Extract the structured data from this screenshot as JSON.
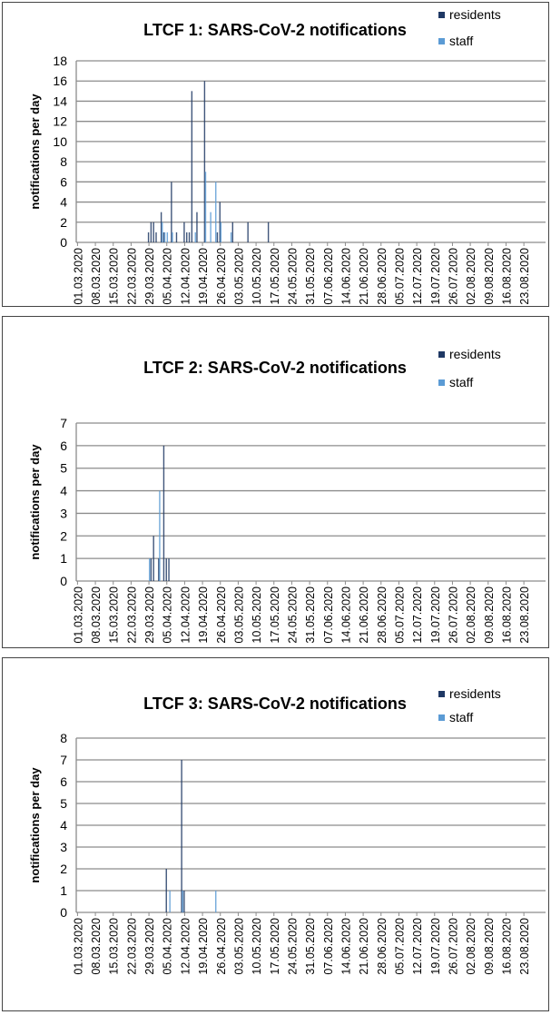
{
  "chart_data": [
    {
      "type": "bar",
      "title": "LTCF 1: SARS-CoV-2 notifications",
      "xlabel": "",
      "ylabel": "notifications per day",
      "ylim": [
        0,
        18
      ],
      "yticks": [
        0,
        2,
        4,
        6,
        8,
        10,
        12,
        14,
        16,
        18
      ],
      "grid": true,
      "legend_position": "top-right",
      "x_start": "01.03.2020",
      "x_end": "31.08.2020",
      "xtick_labels": [
        "01.03.2020",
        "08.03.2020",
        "15.03.2020",
        "22.03.2020",
        "29.03.2020",
        "05.04.2020",
        "12.04.2020",
        "19.04.2020",
        "26.04.2020",
        "03.05.2020",
        "10.05.2020",
        "17.05.2020",
        "24.05.2020",
        "31.05.2020",
        "07.06.2020",
        "14.06.2020",
        "21.06.2020",
        "28.06.2020",
        "05.07.2020",
        "12.07.2020",
        "19.07.2020",
        "26.07.2020",
        "02.08.2020",
        "09.08.2020",
        "16.08.2020",
        "23.08.2020"
      ],
      "series": [
        {
          "name": "residents",
          "color": "#1f3864",
          "points": [
            {
              "date": "29.03.2020",
              "value": 1
            },
            {
              "date": "30.03.2020",
              "value": 2
            },
            {
              "date": "31.03.2020",
              "value": 2
            },
            {
              "date": "01.04.2020",
              "value": 1
            },
            {
              "date": "03.04.2020",
              "value": 3
            },
            {
              "date": "04.04.2020",
              "value": 1
            },
            {
              "date": "07.04.2020",
              "value": 6
            },
            {
              "date": "09.04.2020",
              "value": 1
            },
            {
              "date": "12.04.2020",
              "value": 2
            },
            {
              "date": "13.04.2020",
              "value": 1
            },
            {
              "date": "14.04.2020",
              "value": 1
            },
            {
              "date": "15.04.2020",
              "value": 15
            },
            {
              "date": "17.04.2020",
              "value": 3
            },
            {
              "date": "20.04.2020",
              "value": 16
            },
            {
              "date": "25.04.2020",
              "value": 1
            },
            {
              "date": "26.04.2020",
              "value": 4
            },
            {
              "date": "01.05.2020",
              "value": 2
            },
            {
              "date": "07.05.2020",
              "value": 2
            },
            {
              "date": "15.05.2020",
              "value": 2
            }
          ]
        },
        {
          "name": "staff",
          "color": "#5b9bd5",
          "points": [
            {
              "date": "03.04.2020",
              "value": 2
            },
            {
              "date": "04.04.2020",
              "value": 1
            },
            {
              "date": "05.04.2020",
              "value": 1
            },
            {
              "date": "07.04.2020",
              "value": 1
            },
            {
              "date": "16.04.2020",
              "value": 1
            },
            {
              "date": "20.04.2020",
              "value": 7
            },
            {
              "date": "22.04.2020",
              "value": 3
            },
            {
              "date": "24.04.2020",
              "value": 6
            },
            {
              "date": "26.04.2020",
              "value": 2
            },
            {
              "date": "30.04.2020",
              "value": 1
            }
          ]
        }
      ]
    },
    {
      "type": "bar",
      "title": "LTCF 2: SARS-CoV-2 notifications",
      "xlabel": "",
      "ylabel": "notifications per day",
      "ylim": [
        0,
        7
      ],
      "yticks": [
        0,
        1,
        2,
        3,
        4,
        5,
        6,
        7
      ],
      "grid": true,
      "legend_position": "top-right",
      "x_start": "01.03.2020",
      "x_end": "31.08.2020",
      "xtick_labels": [
        "01.03.2020",
        "08.03.2020",
        "15.03.2020",
        "22.03.2020",
        "29.03.2020",
        "05.04.2020",
        "12.04.2020",
        "19.04.2020",
        "26.04.2020",
        "03.05.2020",
        "10.05.2020",
        "17.05.2020",
        "24.05.2020",
        "31.05.2020",
        "07.06.2020",
        "14.06.2020",
        "21.06.2020",
        "28.06.2020",
        "05.07.2020",
        "12.07.2020",
        "19.07.2020",
        "26.07.2020",
        "02.08.2020",
        "09.08.2020",
        "16.08.2020",
        "23.08.2020"
      ],
      "series": [
        {
          "name": "residents",
          "color": "#1f3864",
          "points": [
            {
              "date": "30.03.2020",
              "value": 1
            },
            {
              "date": "31.03.2020",
              "value": 2
            },
            {
              "date": "02.04.2020",
              "value": 1
            },
            {
              "date": "04.04.2020",
              "value": 6
            },
            {
              "date": "05.04.2020",
              "value": 1
            },
            {
              "date": "06.04.2020",
              "value": 1
            }
          ]
        },
        {
          "name": "staff",
          "color": "#5b9bd5",
          "points": [
            {
              "date": "29.03.2020",
              "value": 1
            },
            {
              "date": "02.04.2020",
              "value": 4
            }
          ]
        }
      ]
    },
    {
      "type": "bar",
      "title": "LTCF 3: SARS-CoV-2 notifications",
      "xlabel": "",
      "ylabel": "notifications per day",
      "ylim": [
        0,
        8
      ],
      "yticks": [
        0,
        1,
        2,
        3,
        4,
        5,
        6,
        7,
        8
      ],
      "grid": true,
      "legend_position": "top-right",
      "x_start": "01.03.2020",
      "x_end": "31.08.2020",
      "xtick_labels": [
        "01.03.2020",
        "08.03.2020",
        "15.03.2020",
        "22.03.2020",
        "29.03.2020",
        "05.04.2020",
        "12.04.2020",
        "19.04.2020",
        "26.04.2020",
        "03.05.2020",
        "10.05.2020",
        "17.05.2020",
        "24.05.2020",
        "31.05.2020",
        "07.06.2020",
        "14.06.2020",
        "21.06.2020",
        "28.06.2020",
        "05.07.2020",
        "12.07.2020",
        "19.07.2020",
        "26.07.2020",
        "02.08.2020",
        "09.08.2020",
        "16.08.2020",
        "23.08.2020"
      ],
      "series": [
        {
          "name": "residents",
          "color": "#1f3864",
          "points": [
            {
              "date": "05.04.2020",
              "value": 2
            },
            {
              "date": "11.04.2020",
              "value": 7
            },
            {
              "date": "12.04.2020",
              "value": 1
            }
          ]
        },
        {
          "name": "staff",
          "color": "#5b9bd5",
          "points": [
            {
              "date": "06.04.2020",
              "value": 1
            },
            {
              "date": "11.04.2020",
              "value": 1
            },
            {
              "date": "24.04.2020",
              "value": 1
            }
          ]
        }
      ]
    }
  ]
}
